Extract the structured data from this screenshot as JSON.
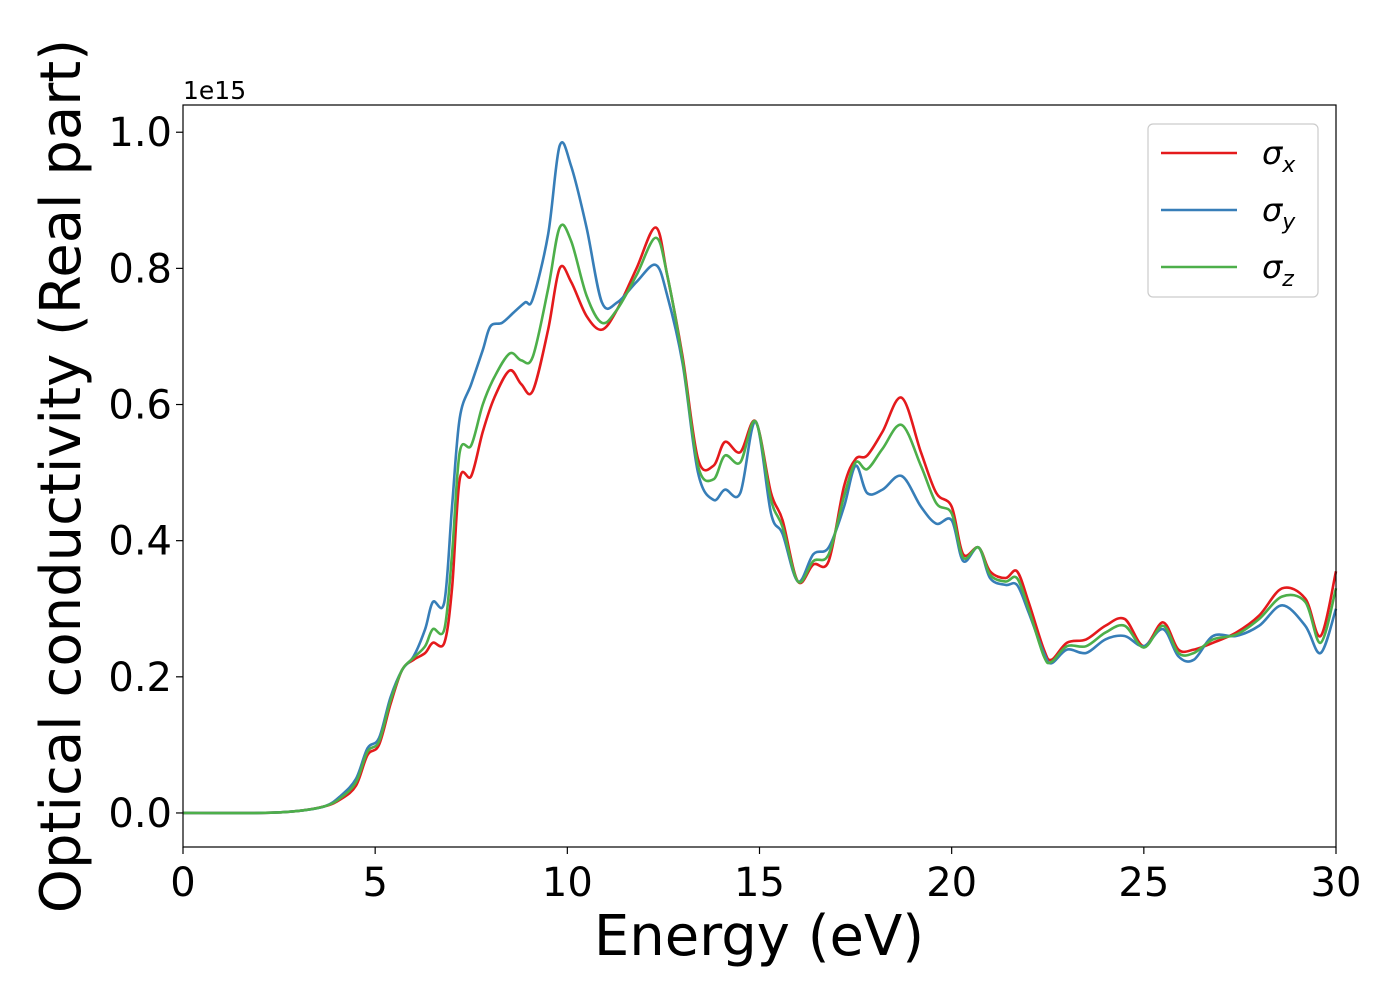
{
  "chart_data": {
    "type": "line",
    "title": "",
    "xlabel": "Energy (eV)",
    "ylabel": "Optical conductivity (Real part)",
    "xlim": [
      0,
      30
    ],
    "ylim": [
      -0.05,
      1.04
    ],
    "y_offset_label": "1e15",
    "xticks": [
      0,
      5,
      10,
      15,
      20,
      25,
      30
    ],
    "yticks": [
      0.0,
      0.2,
      0.4,
      0.6,
      0.8,
      1.0
    ],
    "xtick_labels": [
      "0",
      "5",
      "10",
      "15",
      "20",
      "25",
      "30"
    ],
    "ytick_labels": [
      "0.0",
      "0.2",
      "0.4",
      "0.6",
      "0.8",
      "1.0"
    ],
    "grid": false,
    "legend_position": "top-right",
    "series": [
      {
        "name": "σx",
        "symbol": "σ",
        "subscript": "x",
        "color": "#e41a1c",
        "x": [
          0,
          2,
          3,
          3.7,
          4.1,
          4.5,
          4.8,
          5.1,
          5.4,
          5.7,
          6.0,
          6.3,
          6.5,
          6.8,
          7.0,
          7.2,
          7.5,
          7.8,
          8.1,
          8.5,
          8.8,
          9.1,
          9.5,
          9.8,
          10.1,
          10.5,
          10.9,
          11.3,
          11.8,
          12.3,
          12.6,
          13.0,
          13.4,
          13.8,
          14.1,
          14.5,
          14.9,
          15.3,
          15.6,
          16.0,
          16.4,
          16.8,
          17.2,
          17.5,
          17.8,
          18.2,
          18.7,
          19.2,
          19.6,
          20.0,
          20.3,
          20.7,
          21.0,
          21.4,
          21.7,
          22.0,
          22.4,
          22.6,
          23.0,
          23.5,
          24.0,
          24.5,
          25.0,
          25.5,
          25.9,
          26.3,
          26.8,
          27.4,
          28.0,
          28.6,
          29.2,
          29.6,
          30.0
        ],
        "y": [
          0,
          0,
          0.003,
          0.01,
          0.02,
          0.04,
          0.085,
          0.1,
          0.16,
          0.21,
          0.225,
          0.235,
          0.25,
          0.25,
          0.33,
          0.49,
          0.495,
          0.56,
          0.61,
          0.65,
          0.63,
          0.62,
          0.71,
          0.8,
          0.78,
          0.73,
          0.71,
          0.74,
          0.8,
          0.86,
          0.79,
          0.67,
          0.52,
          0.51,
          0.545,
          0.53,
          0.575,
          0.47,
          0.43,
          0.34,
          0.365,
          0.37,
          0.48,
          0.52,
          0.525,
          0.56,
          0.61,
          0.53,
          0.47,
          0.45,
          0.38,
          0.39,
          0.355,
          0.345,
          0.355,
          0.31,
          0.24,
          0.225,
          0.25,
          0.255,
          0.275,
          0.285,
          0.245,
          0.28,
          0.24,
          0.24,
          0.25,
          0.265,
          0.29,
          0.33,
          0.315,
          0.26,
          0.355
        ]
      },
      {
        "name": "σy",
        "symbol": "σ",
        "subscript": "y",
        "color": "#377eb8",
        "x": [
          0,
          2,
          3,
          3.7,
          4.1,
          4.5,
          4.8,
          5.1,
          5.4,
          5.7,
          6.0,
          6.3,
          6.5,
          6.8,
          7.0,
          7.2,
          7.5,
          7.8,
          8.0,
          8.3,
          8.6,
          8.9,
          9.1,
          9.5,
          9.8,
          10.1,
          10.5,
          10.9,
          11.3,
          11.8,
          12.3,
          12.6,
          13.0,
          13.4,
          13.8,
          14.1,
          14.5,
          14.9,
          15.3,
          15.6,
          16.0,
          16.4,
          16.8,
          17.2,
          17.5,
          17.8,
          18.2,
          18.7,
          19.2,
          19.6,
          20.0,
          20.3,
          20.7,
          21.0,
          21.4,
          21.7,
          22.0,
          22.4,
          22.6,
          23.0,
          23.5,
          24.0,
          24.5,
          25.0,
          25.5,
          25.9,
          26.3,
          26.8,
          27.4,
          28.0,
          28.6,
          29.2,
          29.6,
          30.0
        ],
        "y": [
          0,
          0,
          0.003,
          0.01,
          0.025,
          0.05,
          0.095,
          0.11,
          0.17,
          0.21,
          0.23,
          0.27,
          0.31,
          0.31,
          0.45,
          0.58,
          0.63,
          0.68,
          0.715,
          0.72,
          0.735,
          0.75,
          0.755,
          0.85,
          0.98,
          0.95,
          0.86,
          0.75,
          0.75,
          0.78,
          0.805,
          0.76,
          0.66,
          0.5,
          0.46,
          0.475,
          0.47,
          0.575,
          0.44,
          0.41,
          0.34,
          0.38,
          0.39,
          0.45,
          0.51,
          0.47,
          0.475,
          0.495,
          0.45,
          0.425,
          0.43,
          0.37,
          0.39,
          0.345,
          0.335,
          0.335,
          0.295,
          0.235,
          0.22,
          0.24,
          0.235,
          0.255,
          0.26,
          0.245,
          0.27,
          0.23,
          0.225,
          0.26,
          0.26,
          0.275,
          0.305,
          0.275,
          0.235,
          0.3
        ]
      },
      {
        "name": "σz",
        "symbol": "σ",
        "subscript": "z",
        "color": "#4daf4a",
        "x": [
          0,
          2,
          3,
          3.7,
          4.1,
          4.5,
          4.8,
          5.1,
          5.4,
          5.7,
          6.0,
          6.3,
          6.5,
          6.8,
          7.0,
          7.2,
          7.5,
          7.8,
          8.1,
          8.5,
          8.8,
          9.1,
          9.5,
          9.8,
          10.1,
          10.5,
          10.9,
          11.3,
          11.8,
          12.3,
          12.6,
          13.0,
          13.4,
          13.8,
          14.1,
          14.5,
          14.9,
          15.3,
          15.6,
          16.0,
          16.4,
          16.8,
          17.2,
          17.5,
          17.8,
          18.2,
          18.7,
          19.2,
          19.6,
          20.0,
          20.3,
          20.7,
          21.0,
          21.4,
          21.7,
          22.0,
          22.4,
          22.6,
          23.0,
          23.5,
          24.0,
          24.5,
          25.0,
          25.5,
          25.9,
          26.3,
          26.8,
          27.4,
          28.0,
          28.6,
          29.2,
          29.6,
          30.0
        ],
        "y": [
          0,
          0,
          0.003,
          0.01,
          0.022,
          0.045,
          0.09,
          0.105,
          0.165,
          0.21,
          0.228,
          0.245,
          0.27,
          0.27,
          0.38,
          0.53,
          0.54,
          0.6,
          0.64,
          0.675,
          0.665,
          0.67,
          0.77,
          0.86,
          0.84,
          0.76,
          0.72,
          0.74,
          0.79,
          0.845,
          0.79,
          0.665,
          0.51,
          0.49,
          0.525,
          0.515,
          0.575,
          0.46,
          0.42,
          0.34,
          0.37,
          0.38,
          0.465,
          0.515,
          0.505,
          0.535,
          0.57,
          0.51,
          0.455,
          0.44,
          0.375,
          0.39,
          0.35,
          0.34,
          0.345,
          0.3,
          0.23,
          0.222,
          0.245,
          0.245,
          0.265,
          0.275,
          0.243,
          0.275,
          0.235,
          0.235,
          0.255,
          0.262,
          0.285,
          0.318,
          0.31,
          0.25,
          0.33
        ]
      }
    ]
  }
}
